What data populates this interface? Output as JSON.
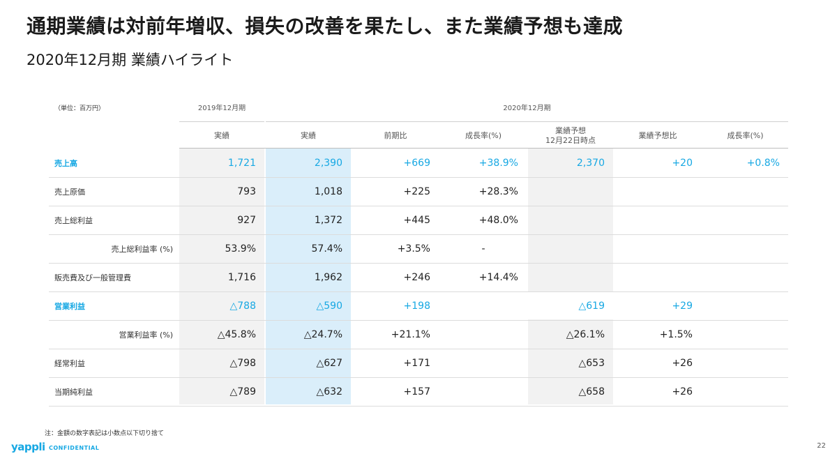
{
  "title": "通期業績は対前年増収、損失の改善を果たし、また業績予想も達成",
  "subtitle": "2020年12月期 業績ハイライト",
  "table": {
    "unit": "（単位：百万円）",
    "period_2019": "2019年12月期",
    "period_2020": "2020年12月期",
    "headers": {
      "c1": "実績",
      "c2": "実績",
      "c3": "前期比",
      "c4": "成長率(%)",
      "c5_line1": "業績予想",
      "c5_line2": "12月22日時点",
      "c6": "業績予想比",
      "c7": "成長率(%)"
    },
    "rows": [
      {
        "label": "売上高",
        "c1": "1,721",
        "c2": "2,390",
        "c3": "+669",
        "c4": "+38.9%",
        "c5": "2,370",
        "c6": "+20",
        "c7": "+0.8%"
      },
      {
        "label": "売上原価",
        "c1": "793",
        "c2": "1,018",
        "c3": "+225",
        "c4": "+28.3%",
        "c5": "",
        "c6": "",
        "c7": ""
      },
      {
        "label": "売上総利益",
        "c1": "927",
        "c2": "1,372",
        "c3": "+445",
        "c4": "+48.0%",
        "c5": "",
        "c6": "",
        "c7": ""
      },
      {
        "label": "売上総利益率 (%)",
        "c1": "53.9%",
        "c2": "57.4%",
        "c3": "+3.5%",
        "c4": "-",
        "c5": "",
        "c6": "",
        "c7": ""
      },
      {
        "label": "販売費及び一般管理費",
        "c1": "1,716",
        "c2": "1,962",
        "c3": "+246",
        "c4": "+14.4%",
        "c5": "",
        "c6": "",
        "c7": ""
      },
      {
        "label": "営業利益",
        "c1": "△788",
        "c2": "△590",
        "c3": "+198",
        "c4": "",
        "c5": "△619",
        "c6": "+29",
        "c7": ""
      },
      {
        "label": "営業利益率 (%)",
        "c1": "△45.8%",
        "c2": "△24.7%",
        "c3": "+21.1%",
        "c4": "",
        "c5": "△26.1%",
        "c6": "+1.5%",
        "c7": ""
      },
      {
        "label": "経常利益",
        "c1": "△798",
        "c2": "△627",
        "c3": "+171",
        "c4": "",
        "c5": "△653",
        "c6": "+26",
        "c7": ""
      },
      {
        "label": "当期純利益",
        "c1": "△789",
        "c2": "△632",
        "c3": "+157",
        "c4": "",
        "c5": "△658",
        "c6": "+26",
        "c7": ""
      }
    ]
  },
  "footer": {
    "note": "注：金額の数字表記は小数点以下切り捨て",
    "logo": "yappli",
    "confidential": "CONFIDENTIAL",
    "page": "22"
  },
  "colors": {
    "accent": "#17a8e3",
    "highlight_col": "#daeefa",
    "gray_col": "#f2f2f2"
  }
}
